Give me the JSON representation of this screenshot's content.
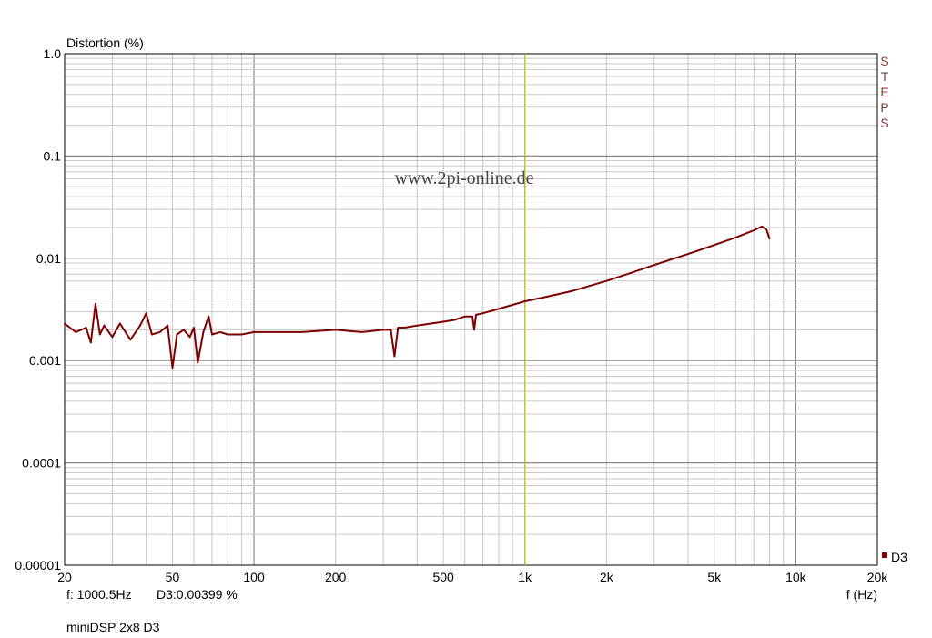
{
  "chart_data": {
    "type": "line",
    "ylabel": "Distortion (%)",
    "xlabel": "f (Hz)",
    "x_scale": "log",
    "y_scale": "log",
    "xlim": [
      20,
      20000
    ],
    "ylim": [
      1e-05,
      1.0
    ],
    "grid": true,
    "x_ticks": [
      20,
      50,
      100,
      200,
      500,
      1000,
      2000,
      5000,
      10000,
      20000
    ],
    "x_tick_labels": [
      "20",
      "50",
      "100",
      "200",
      "500",
      "1k",
      "2k",
      "5k",
      "10k",
      "20k"
    ],
    "y_ticks": [
      1e-05,
      0.0001,
      0.001,
      0.01,
      0.1,
      1.0
    ],
    "y_tick_labels": [
      "0.00001",
      "0.0001",
      "0.001",
      "0.01",
      "0.1",
      "1.0"
    ],
    "cursor": {
      "x": 1000.5,
      "color": "#cccc00"
    },
    "watermark": "www.2pi-online.de",
    "side_label": "STEPS",
    "readout": {
      "freq": "f: 1000.5Hz",
      "value": "D3:0.00399 %"
    },
    "footer": "miniDSP 2x8 D3",
    "series": [
      {
        "name": "D3",
        "color": "#7f0000",
        "x": [
          20,
          22,
          24,
          25,
          26,
          27,
          28,
          30,
          32,
          35,
          38,
          40,
          42,
          45,
          48,
          50,
          52,
          55,
          58,
          60,
          62,
          65,
          68,
          70,
          75,
          80,
          90,
          100,
          120,
          150,
          200,
          250,
          300,
          320,
          330,
          340,
          360,
          400,
          450,
          500,
          550,
          600,
          640,
          650,
          660,
          700,
          800,
          900,
          1000,
          1200,
          1500,
          2000,
          2500,
          3000,
          4000,
          5000,
          6000,
          7000,
          7500,
          7800,
          8000
        ],
        "y": [
          0.0023,
          0.0019,
          0.0021,
          0.0015,
          0.0036,
          0.0018,
          0.0022,
          0.0017,
          0.0023,
          0.0016,
          0.0022,
          0.0029,
          0.0018,
          0.0019,
          0.0022,
          0.00085,
          0.0018,
          0.002,
          0.0017,
          0.0021,
          0.00095,
          0.0019,
          0.0027,
          0.0018,
          0.0019,
          0.0018,
          0.0018,
          0.0019,
          0.0019,
          0.0019,
          0.002,
          0.0019,
          0.002,
          0.002,
          0.0011,
          0.0021,
          0.0021,
          0.0022,
          0.0023,
          0.0024,
          0.0025,
          0.0027,
          0.0027,
          0.002,
          0.0028,
          0.0029,
          0.0032,
          0.0035,
          0.0038,
          0.0042,
          0.0048,
          0.006,
          0.0073,
          0.0086,
          0.011,
          0.0135,
          0.016,
          0.0188,
          0.0205,
          0.019,
          0.0155
        ]
      }
    ]
  }
}
